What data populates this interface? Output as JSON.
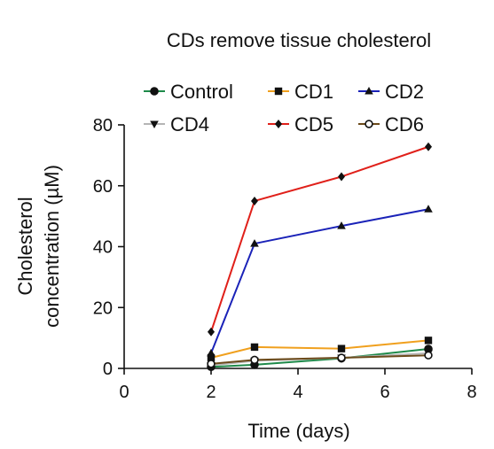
{
  "chart_data": {
    "type": "line",
    "title": "CDs remove tissue cholesterol",
    "xlabel": "Time (days)",
    "ylabel_lines": [
      "Cholesterol",
      "concentration (µM)"
    ],
    "xlim": [
      0,
      8
    ],
    "ylim": [
      0,
      80
    ],
    "xticks": [
      0,
      2,
      4,
      6,
      8
    ],
    "yticks": [
      0,
      20,
      40,
      60,
      80
    ],
    "grid": false,
    "legend": "top",
    "series": [
      {
        "name": "Control",
        "marker": "circle",
        "color": "#1e8a4a",
        "x": [
          2,
          3,
          5,
          7
        ],
        "y": [
          0.5,
          1.2,
          3.3,
          6.4
        ]
      },
      {
        "name": "CD1",
        "marker": "square",
        "color": "#f0a01e",
        "x": [
          2,
          3,
          5,
          7
        ],
        "y": [
          3.5,
          7.0,
          6.5,
          9.2
        ]
      },
      {
        "name": "CD2",
        "marker": "triangle-up",
        "color": "#1a22b8",
        "x": [
          2,
          3,
          5,
          7
        ],
        "y": [
          5.0,
          41.0,
          46.8,
          52.3
        ]
      },
      {
        "name": "CD4",
        "marker": "triangle-down",
        "color": "#b5b5b5",
        "x": [
          2,
          3,
          5,
          7
        ],
        "y": [
          1.0,
          2.5,
          3.5,
          5.0
        ]
      },
      {
        "name": "CD5",
        "marker": "diamond",
        "color": "#e0201a",
        "x": [
          2,
          3,
          5,
          7
        ],
        "y": [
          12.0,
          55.0,
          63.0,
          72.8
        ]
      },
      {
        "name": "CD6",
        "marker": "circle-open",
        "color": "#6b4a1a",
        "x": [
          2,
          3,
          5,
          7
        ],
        "y": [
          1.5,
          2.8,
          3.5,
          4.3
        ]
      }
    ]
  }
}
